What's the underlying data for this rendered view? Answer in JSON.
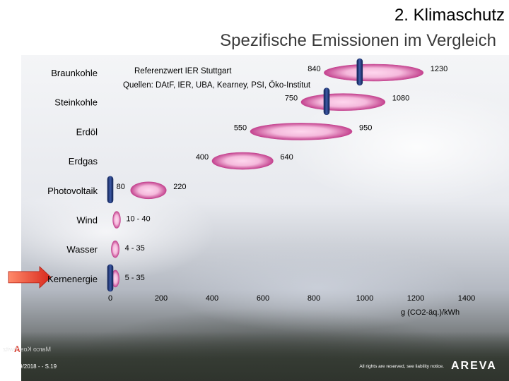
{
  "title": "2. Klimaschutz",
  "subtitle": "Spezifische Emissionen im Vergleich",
  "reference": {
    "line1": "Referenzwert IER Stuttgart",
    "line2": "Quellen: DAtF, IER, UBA, Kearney, PSI, Öko-Institut"
  },
  "colors": {
    "ellipse_edge": "#c23a8a",
    "ellipse_center": "#ffd6ee",
    "reference_bar": "#1b2f6b",
    "arrow": "#e23b2a"
  },
  "icons": {
    "arrow": "right-arrow-icon"
  },
  "chart_data": {
    "type": "range",
    "xlabel": "g (CO2-äq.)/kWh",
    "xlim": [
      0,
      1400
    ],
    "xticks": [
      "0",
      "200",
      "400",
      "600",
      "800",
      "1000",
      "1200",
      "1400"
    ],
    "xtick_values": [
      0,
      200,
      400,
      600,
      800,
      1000,
      1200,
      1400
    ],
    "highlighted_category": "Kernenergie",
    "series": [
      {
        "category": "Braunkohle",
        "min": 840,
        "max": 1230,
        "labels": [
          "840",
          "1230"
        ],
        "reference_value": 980
      },
      {
        "category": "Steinkohle",
        "min": 750,
        "max": 1080,
        "labels": [
          "750",
          "1080"
        ],
        "reference_value": 850
      },
      {
        "category": "Erdöl",
        "min": 550,
        "max": 950,
        "labels": [
          "550",
          "950"
        ],
        "reference_value": null
      },
      {
        "category": "Erdgas",
        "min": 400,
        "max": 640,
        "labels": [
          "400",
          "640"
        ],
        "reference_value": null
      },
      {
        "category": "Photovoltaik",
        "min": 80,
        "max": 220,
        "labels": [
          "80",
          "220"
        ],
        "reference_value": 0
      },
      {
        "category": "Wind",
        "min": 10,
        "max": 40,
        "labels": [
          "10 - 40"
        ],
        "reference_value": null
      },
      {
        "category": "Wasser",
        "min": 4,
        "max": 35,
        "labels": [
          "4 - 35"
        ],
        "reference_value": null
      },
      {
        "category": "Kernenergie",
        "min": 5,
        "max": 35,
        "labels": [
          "5 - 35"
        ],
        "reference_value": 0
      }
    ]
  },
  "footer": {
    "date": "3/19/2018 -  - S.19",
    "rights": "All rights are reserved, see liability notice.",
    "brand": "AREVA",
    "mark": "A",
    "mirrored": "Marco Koschwitz"
  }
}
